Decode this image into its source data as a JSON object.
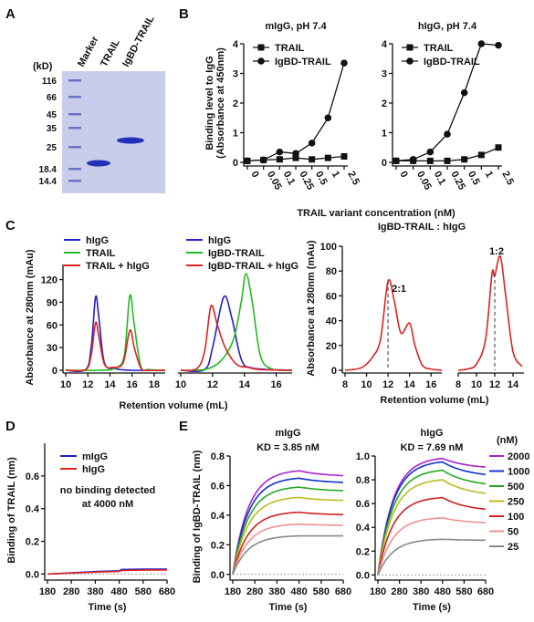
{
  "panel_letters": {
    "a": "A",
    "b": "B",
    "c": "C",
    "d": "D",
    "e": "E"
  },
  "gel": {
    "header_labels": [
      "Marker",
      "TRAIL",
      "IgBD-TRAIL"
    ],
    "kd_title": "(kD)",
    "marker_kd": [
      "116",
      "66",
      "45",
      "35",
      "25",
      "18.4",
      "14.4"
    ]
  },
  "colors": {
    "hIgG": "#2020cc",
    "TRAIL": "#22bb22",
    "mix": "#dd2222",
    "gel_bg": "#c9cdec",
    "gel_band": "#2430b8"
  },
  "chart_data": [
    {
      "id": "B1",
      "type": "line",
      "title": "mIgG, pH 7.4",
      "xlabel": "TRAIL variant concentration (nM)",
      "ylabel": "Binding level to IgG (Absorbance at 450nm)",
      "categories": [
        "0",
        "0.05",
        "0.1",
        "0.25",
        "0.5",
        "1",
        "2.5"
      ],
      "ylim": [
        0,
        4
      ],
      "yticks": [
        "0",
        "1",
        "2",
        "3",
        "4"
      ],
      "series": [
        {
          "name": "TRAIL",
          "marker": "square",
          "values": [
            0.05,
            0.08,
            0.1,
            0.15,
            0.1,
            0.15,
            0.2
          ]
        },
        {
          "name": "IgBD-TRAIL",
          "marker": "circle",
          "values": [
            0.05,
            0.08,
            0.35,
            0.3,
            0.65,
            1.5,
            3.35
          ]
        }
      ]
    },
    {
      "id": "B2",
      "type": "line",
      "title": "hIgG, pH 7.4",
      "categories": [
        "0",
        "0.05",
        "0.1",
        "0.25",
        "0.5",
        "1",
        "2.5"
      ],
      "ylim": [
        0,
        4
      ],
      "yticks": [
        "0",
        "1",
        "2",
        "3",
        "4"
      ],
      "series": [
        {
          "name": "TRAIL",
          "marker": "square",
          "values": [
            0.05,
            0.05,
            0.05,
            0.05,
            0.1,
            0.25,
            0.5
          ]
        },
        {
          "name": "IgBD-TRAIL",
          "marker": "circle",
          "values": [
            0.05,
            0.1,
            0.35,
            0.95,
            2.35,
            4.0,
            3.95
          ]
        }
      ]
    },
    {
      "id": "C1",
      "type": "line",
      "xlabel": "Retention volume (mL)",
      "ylabel": "Absorbance at 280nm (mAu)",
      "xlim": [
        10,
        19
      ],
      "xticks": [
        "10",
        "12",
        "14",
        "16",
        "18"
      ],
      "ylim": [
        0,
        140
      ],
      "yticks": [
        "0",
        "30",
        "60",
        "90",
        "120"
      ],
      "series": [
        {
          "name": "hIgG",
          "color": "#2020cc",
          "points": [
            [
              10,
              0
            ],
            [
              11.8,
              1
            ],
            [
              12.3,
              30
            ],
            [
              12.7,
              97
            ],
            [
              13.0,
              70
            ],
            [
              13.5,
              10
            ],
            [
              14.5,
              2
            ],
            [
              16,
              0
            ],
            [
              19,
              0
            ]
          ]
        },
        {
          "name": "TRAIL",
          "color": "#22bb22",
          "points": [
            [
              10,
              0
            ],
            [
              13,
              0
            ],
            [
              14.5,
              3
            ],
            [
              15.3,
              20
            ],
            [
              15.8,
              99
            ],
            [
              16.2,
              60
            ],
            [
              16.8,
              5
            ],
            [
              17.5,
              1
            ],
            [
              19,
              0
            ]
          ]
        },
        {
          "name": "TRAIL + hIgG",
          "color": "#dd2222",
          "points": [
            [
              10,
              0
            ],
            [
              11.8,
              1
            ],
            [
              12.3,
              20
            ],
            [
              12.7,
              63
            ],
            [
              13.0,
              45
            ],
            [
              13.5,
              8
            ],
            [
              14.3,
              4
            ],
            [
              15.2,
              10
            ],
            [
              15.8,
              53
            ],
            [
              16.2,
              30
            ],
            [
              16.8,
              3
            ],
            [
              17.5,
              0
            ],
            [
              19,
              0
            ]
          ]
        }
      ]
    },
    {
      "id": "C2",
      "type": "line",
      "xlim": [
        10,
        17
      ],
      "xticks": [
        "10",
        "12",
        "14",
        "16"
      ],
      "ylim": [
        0,
        140
      ],
      "series": [
        {
          "name": "hIgG",
          "color": "#2020cc",
          "points": [
            [
              10,
              0
            ],
            [
              11.5,
              1
            ],
            [
              12.0,
              30
            ],
            [
              12.7,
              97
            ],
            [
              13.2,
              70
            ],
            [
              13.8,
              15
            ],
            [
              14.5,
              3
            ],
            [
              17,
              0
            ]
          ]
        },
        {
          "name": "IgBD-TRAIL",
          "color": "#22bb22",
          "points": [
            [
              10,
              0
            ],
            [
              11.5,
              1
            ],
            [
              12.5,
              12
            ],
            [
              13.3,
              40
            ],
            [
              13.8,
              90
            ],
            [
              14.1,
              128
            ],
            [
              14.5,
              90
            ],
            [
              15.0,
              20
            ],
            [
              15.7,
              2
            ],
            [
              17,
              0
            ]
          ]
        },
        {
          "name": "IgBD-TRAIL + hIgG",
          "color": "#dd2222",
          "points": [
            [
              10,
              0
            ],
            [
              11.0,
              2
            ],
            [
              11.5,
              25
            ],
            [
              11.9,
              85
            ],
            [
              12.3,
              60
            ],
            [
              12.8,
              30
            ],
            [
              13.5,
              8
            ],
            [
              14.2,
              4
            ],
            [
              15,
              1
            ],
            [
              17,
              0
            ]
          ]
        }
      ]
    },
    {
      "id": "C3",
      "type": "line",
      "title": "IgBD-TRAIL : hIgG",
      "xlabel": "Retention volume (mL)",
      "ylabel": "Absorbance at 280nm (mAu)",
      "xlim": [
        8,
        17
      ],
      "xticks_left": [
        "8",
        "10",
        "12",
        "14",
        "16"
      ],
      "xticks_right": [
        "8",
        "10",
        "12",
        "14",
        "16"
      ],
      "ylim": [
        0,
        100
      ],
      "yticks": [
        "0",
        "20",
        "40",
        "60",
        "80",
        "100"
      ],
      "annotations": [
        "2:1",
        "1:2"
      ],
      "series": [
        {
          "name": "2:1",
          "color": "#dd2222",
          "points": [
            [
              8,
              0
            ],
            [
              9.5,
              2
            ],
            [
              10.5,
              10
            ],
            [
              11.3,
              25
            ],
            [
              12.0,
              72
            ],
            [
              12.6,
              55
            ],
            [
              13.2,
              30
            ],
            [
              14.0,
              38
            ],
            [
              14.5,
              20
            ],
            [
              15.2,
              4
            ],
            [
              16,
              1
            ],
            [
              17,
              0
            ]
          ]
        },
        {
          "name": "1:2",
          "color": "#dd2222",
          "points": [
            [
              8,
              0
            ],
            [
              9,
              1
            ],
            [
              10,
              5
            ],
            [
              11.0,
              25
            ],
            [
              11.7,
              78
            ],
            [
              12.0,
              76
            ],
            [
              12.6,
              92
            ],
            [
              13.2,
              60
            ],
            [
              14.0,
              15
            ],
            [
              15.0,
              3
            ],
            [
              16,
              1
            ],
            [
              17,
              0
            ]
          ]
        }
      ]
    },
    {
      "id": "D",
      "type": "line",
      "xlabel": "Time (s)",
      "ylabel": "Binding of TRAIL (nm)",
      "xlim": [
        180,
        680
      ],
      "xticks": [
        "180",
        "280",
        "380",
        "480",
        "580",
        "680"
      ],
      "ylim": [
        -0.02,
        0.8
      ],
      "yticks": [
        "0.0",
        "0.2",
        "0.4",
        "0.6"
      ],
      "annotation": "no binding detected at 4000 nM",
      "series": [
        {
          "name": "mIgG",
          "color": "#2020cc",
          "points": [
            [
              180,
              0
            ],
            [
              280,
              0.008
            ],
            [
              380,
              0.015
            ],
            [
              480,
              0.02
            ],
            [
              490,
              0.028
            ],
            [
              580,
              0.03
            ],
            [
              680,
              0.03
            ]
          ]
        },
        {
          "name": "hIgG",
          "color": "#dd2222",
          "points": [
            [
              180,
              0
            ],
            [
              280,
              0.006
            ],
            [
              380,
              0.012
            ],
            [
              480,
              0.016
            ],
            [
              490,
              0.022
            ],
            [
              580,
              0.024
            ],
            [
              680,
              0.025
            ]
          ]
        }
      ]
    },
    {
      "id": "E1",
      "type": "line",
      "title": "mIgG",
      "subtitle": "KD = 3.85 nM",
      "xlabel": "Time (s)",
      "ylabel": "Binding of IgBD-TRAIL (nm)",
      "xlim": [
        180,
        680
      ],
      "xticks": [
        "180",
        "280",
        "380",
        "480",
        "580",
        "680"
      ],
      "ylim": [
        -0.02,
        0.8
      ],
      "yticks": [
        "0.0",
        "0.2",
        "0.4",
        "0.6",
        "0.8"
      ],
      "series": [
        {
          "name": "2000",
          "color": "#aa22cc",
          "plateau": 0.7,
          "end": 0.66
        },
        {
          "name": "1000",
          "color": "#1133cc",
          "plateau": 0.65,
          "end": 0.615
        },
        {
          "name": "500",
          "color": "#22aa22",
          "plateau": 0.59,
          "end": 0.56
        },
        {
          "name": "250",
          "color": "#bbbb22",
          "plateau": 0.52,
          "end": 0.495
        },
        {
          "name": "100",
          "color": "#cc2222",
          "plateau": 0.42,
          "end": 0.4
        },
        {
          "name": "50",
          "color": "#f09090",
          "plateau": 0.34,
          "end": 0.33
        },
        {
          "name": "25",
          "color": "#888888",
          "plateau": 0.26,
          "end": 0.26
        }
      ]
    },
    {
      "id": "E2",
      "type": "line",
      "title": "hIgG",
      "subtitle": "KD = 7.69 nM",
      "xlabel": "Time (s)",
      "xlim": [
        180,
        680
      ],
      "xticks": [
        "180",
        "280",
        "380",
        "480",
        "580",
        "680"
      ],
      "ylim": [
        -0.02,
        1.0
      ],
      "yticks": [
        "0.0",
        "0.2",
        "0.4",
        "0.6",
        "0.8",
        "1.0"
      ],
      "legend_title": "(nM)",
      "series": [
        {
          "name": "2000",
          "color": "#aa22cc",
          "plateau": 0.98,
          "end": 0.89
        },
        {
          "name": "1000",
          "color": "#1133cc",
          "plateau": 0.95,
          "end": 0.82
        },
        {
          "name": "500",
          "color": "#22aa22",
          "plateau": 0.88,
          "end": 0.74
        },
        {
          "name": "250",
          "color": "#bbbb22",
          "plateau": 0.8,
          "end": 0.66
        },
        {
          "name": "100",
          "color": "#cc2222",
          "plateau": 0.65,
          "end": 0.53
        },
        {
          "name": "50",
          "color": "#f09090",
          "plateau": 0.48,
          "end": 0.43
        },
        {
          "name": "25",
          "color": "#888888",
          "plateau": 0.3,
          "end": 0.29
        }
      ]
    }
  ]
}
